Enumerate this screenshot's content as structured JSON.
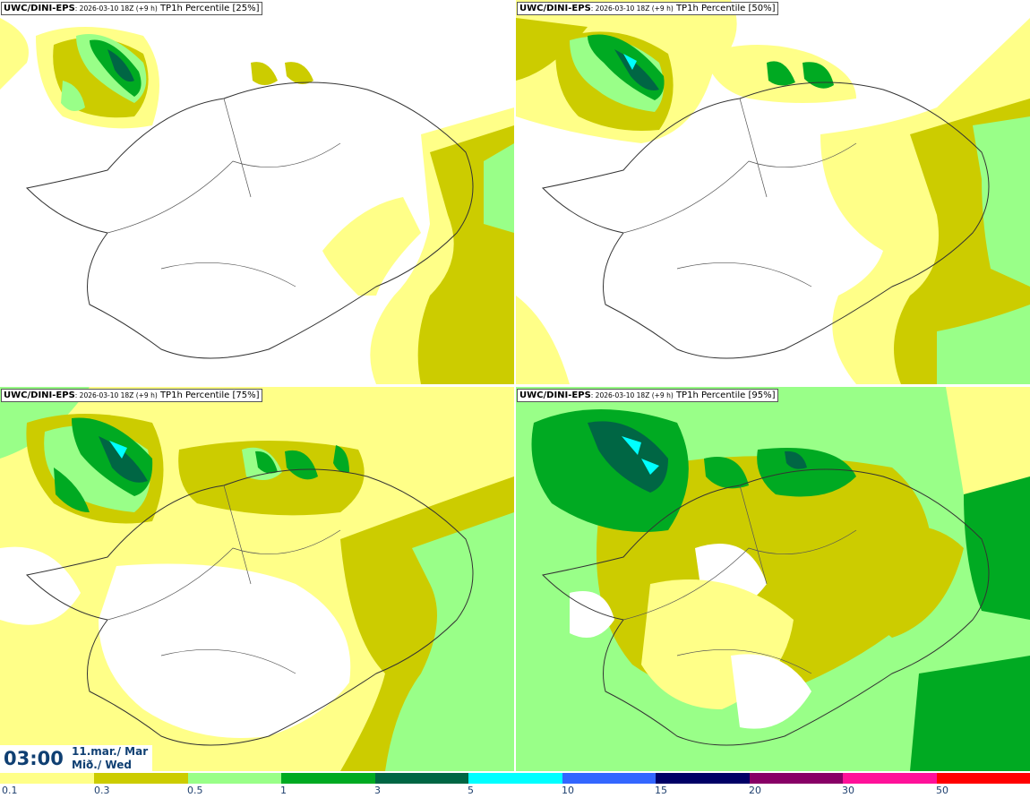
{
  "panels": [
    {
      "model": "UWC/DINI-EPS",
      "run": ": 2026-03-10 18Z (+9 h)",
      "field": " TP1h Percentile [25%]"
    },
    {
      "model": "UWC/DINI-EPS",
      "run": ": 2026-03-10 18Z (+9 h)",
      "field": " TP1h Percentile [50%]"
    },
    {
      "model": "UWC/DINI-EPS",
      "run": ": 2026-03-10 18Z (+9 h)",
      "field": " TP1h Percentile [75%]"
    },
    {
      "model": "UWC/DINI-EPS",
      "run": ": 2026-03-10 18Z (+9 h)",
      "field": " TP1h Percentile [95%]"
    }
  ],
  "time": {
    "clock": "03:00",
    "date": "11.mar./ Mar",
    "weekday": "Mið./ Wed"
  },
  "colorbar": {
    "colors": [
      "#ffffff",
      "#ffff88",
      "#cccc00",
      "#99ff88",
      "#00aa22",
      "#006644",
      "#00ffff",
      "#3366ff",
      "#000066",
      "#880066",
      "#ff1199",
      "#ff0000"
    ],
    "ticks": [
      "0.1",
      "0.3",
      "0.5",
      "1",
      "3",
      "5",
      "10",
      "15",
      "20",
      "30",
      "50"
    ]
  }
}
